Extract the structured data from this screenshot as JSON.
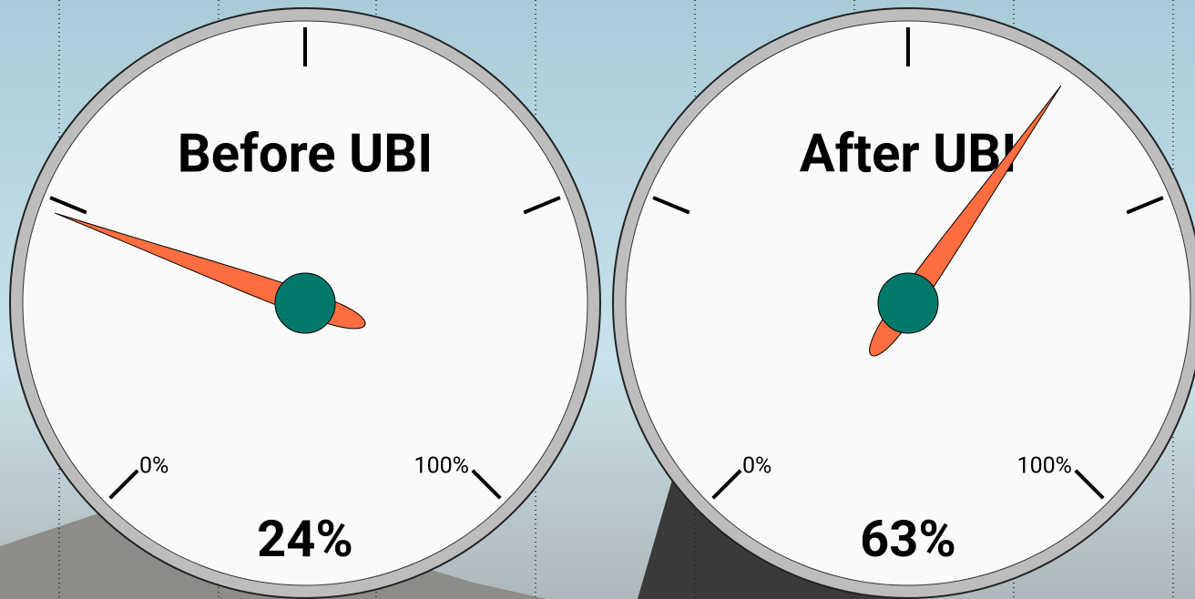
{
  "chart_data": {
    "type": "gauge",
    "gauges": [
      {
        "title": "Before UBI",
        "value": 24,
        "value_label": "24%"
      },
      {
        "title": "After UBI",
        "value": 63,
        "value_label": "63%"
      }
    ],
    "range": [
      0,
      100
    ],
    "range_labels": [
      "0%",
      "100%"
    ],
    "ticks": [
      0,
      25,
      50,
      75,
      100
    ],
    "needle_color": "#ff6e40",
    "hub_color": "#00796b"
  }
}
